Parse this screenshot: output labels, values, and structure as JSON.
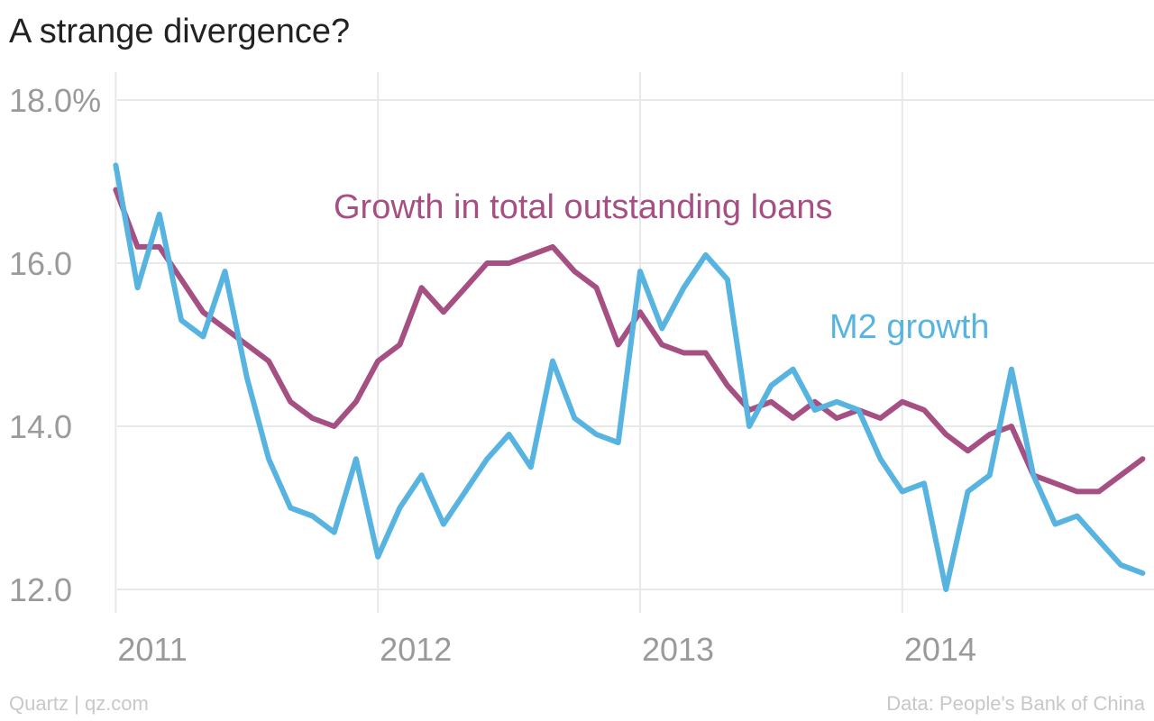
{
  "title": "A strange divergence?",
  "footer": {
    "source_left": "Quartz | qz.com",
    "source_right": "Data: People's Bank of China"
  },
  "colors": {
    "loans": "#a54f83",
    "m2": "#57b4e0",
    "grid": "#e8e8e8",
    "tick_text": "#9a9a9a"
  },
  "chart_data": {
    "type": "line",
    "title": "A strange divergence?",
    "xlabel": "",
    "ylabel": "",
    "grid": true,
    "ylim": [
      12.0,
      18.0
    ],
    "y_ticks": [
      {
        "value": 12,
        "label": "12.0"
      },
      {
        "value": 14,
        "label": "14.0"
      },
      {
        "value": 16,
        "label": "16.0"
      },
      {
        "value": 18,
        "label": "18.0%"
      }
    ],
    "x_ticks": [
      {
        "value": 2011,
        "label": "2011"
      },
      {
        "value": 2012,
        "label": "2012"
      },
      {
        "value": 2013,
        "label": "2013"
      },
      {
        "value": 2014,
        "label": "2014"
      }
    ],
    "xlim": [
      2010.93,
      2014.96
    ],
    "series": [
      {
        "name": "Growth in total outstanding loans",
        "key": "loans",
        "start": 2011.0,
        "step": 0.08333,
        "values": [
          16.9,
          16.2,
          16.2,
          15.8,
          15.4,
          15.2,
          15.0,
          14.8,
          14.3,
          14.1,
          14.0,
          14.3,
          14.8,
          15.0,
          15.7,
          15.4,
          15.7,
          16.0,
          16.0,
          16.1,
          16.2,
          15.9,
          15.7,
          15.0,
          15.4,
          15.0,
          14.9,
          14.9,
          14.5,
          14.2,
          14.3,
          14.1,
          14.3,
          14.1,
          14.2,
          14.1,
          14.3,
          14.2,
          13.9,
          13.7,
          13.9,
          14.0,
          13.4,
          13.3,
          13.2,
          13.2,
          13.4,
          13.6
        ]
      },
      {
        "name": "M2 growth",
        "key": "m2",
        "start": 2011.0,
        "step": 0.08333,
        "values": [
          17.2,
          15.7,
          16.6,
          15.3,
          15.1,
          15.9,
          14.6,
          13.6,
          13.0,
          12.9,
          12.7,
          13.6,
          12.4,
          13.0,
          13.4,
          12.8,
          13.2,
          13.6,
          13.9,
          13.5,
          14.8,
          14.1,
          13.9,
          13.8,
          15.9,
          15.2,
          15.7,
          16.1,
          15.8,
          14.0,
          14.5,
          14.7,
          14.2,
          14.3,
          14.2,
          13.6,
          13.2,
          13.3,
          12.0,
          13.2,
          13.4,
          14.7,
          13.4,
          12.8,
          12.9,
          12.6,
          12.3,
          12.2
        ]
      }
    ],
    "annotations": [
      {
        "text": "Growth in total outstanding loans",
        "series": "loans"
      },
      {
        "text": "M2 growth",
        "series": "m2"
      }
    ]
  }
}
